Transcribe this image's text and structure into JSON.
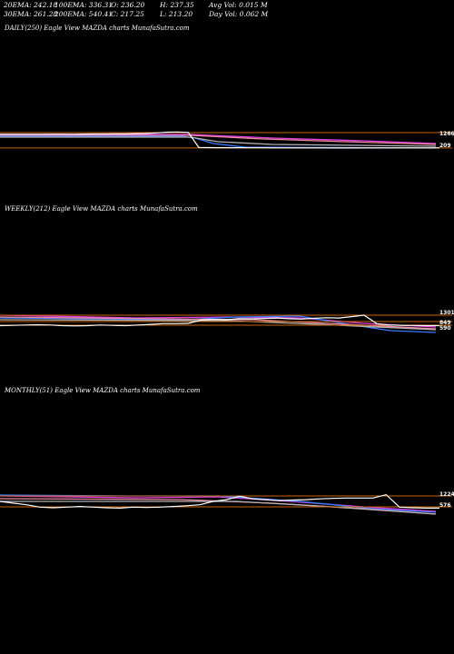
{
  "header": {
    "row1": [
      "20EMA: 242.18",
      "100EMA: 336.31",
      "O: 236.20",
      "H: 237.35",
      "Avg Vol: 0.015  M"
    ],
    "row2": [
      "30EMA: 261.28",
      "200EMA: 540.41",
      "C: 217.25",
      "L: 213.20",
      "Day Vol: 0.062  M"
    ]
  },
  "panels": [
    {
      "title": "DAILY(250) Eagle   View  MAZDA charts MunafaSutra.com",
      "level_labels": [
        "1266",
        "209"
      ]
    },
    {
      "title": "WEEKLY(212) Eagle   View  MAZDA charts MunafaSutra.com",
      "level_labels": [
        "1301",
        "849",
        "590"
      ]
    },
    {
      "title": "MONTHLY(51) Eagle   View  MAZDA charts MunafaSutra.com",
      "level_labels": [
        "1224",
        "576"
      ]
    }
  ],
  "colors": {
    "background": "#000000",
    "price": "#ffffff",
    "level_line": "#c8650a",
    "ema_magenta": "#e040e0",
    "ema_blue": "#3a7bff",
    "ema_pink": "#f08ca0",
    "ema_grey": "#b4b4b4"
  },
  "chart_data": [
    {
      "type": "line",
      "title": "DAILY(250) Eagle   View  MAZDA charts MunafaSutra.com",
      "levels": [
        1266,
        209
      ],
      "series": [
        {
          "values": [
            1150,
            1150,
            1152,
            1155,
            1150,
            1158,
            1160,
            1156,
            1165,
            1170,
            1175,
            1180,
            1178,
            1200,
            1210,
            1250,
            1300,
            1310,
            1280,
            240,
            230,
            228,
            226,
            222,
            220,
            218,
            215,
            213,
            212,
            212,
            211,
            210,
            209,
            209,
            209,
            210,
            210,
            211,
            212,
            213,
            215,
            215,
            217
          ]
        }
      ]
    },
    {
      "type": "line",
      "title": "WEEKLY(212) Eagle   View  MAZDA charts MunafaSutra.com",
      "levels": [
        1301,
        849,
        590
      ],
      "series": [
        {
          "values": [
            560,
            580,
            600,
            620,
            600,
            560,
            540,
            560,
            600,
            580,
            560,
            600,
            650,
            700,
            700,
            720,
            950,
            1000,
            980,
            1050,
            1040,
            1060,
            1100,
            1050,
            1020,
            1080,
            1120,
            1100,
            1200,
            1300,
            700,
            600,
            580,
            570,
            560,
            560
          ]
        }
      ]
    },
    {
      "type": "line",
      "title": "MONTHLY(51) Eagle   View  MAZDA charts MunafaSutra.com",
      "levels": [
        1224,
        576
      ],
      "series": [
        {
          "values": [
            900,
            800,
            700,
            560,
            520,
            560,
            600,
            560,
            520,
            500,
            560,
            540,
            560,
            600,
            640,
            700,
            900,
            1000,
            1200,
            1050,
            1000,
            950,
            980,
            1000,
            1050,
            1080,
            1100,
            1100,
            1100,
            1300,
            560,
            520,
            500,
            500
          ]
        }
      ]
    }
  ]
}
